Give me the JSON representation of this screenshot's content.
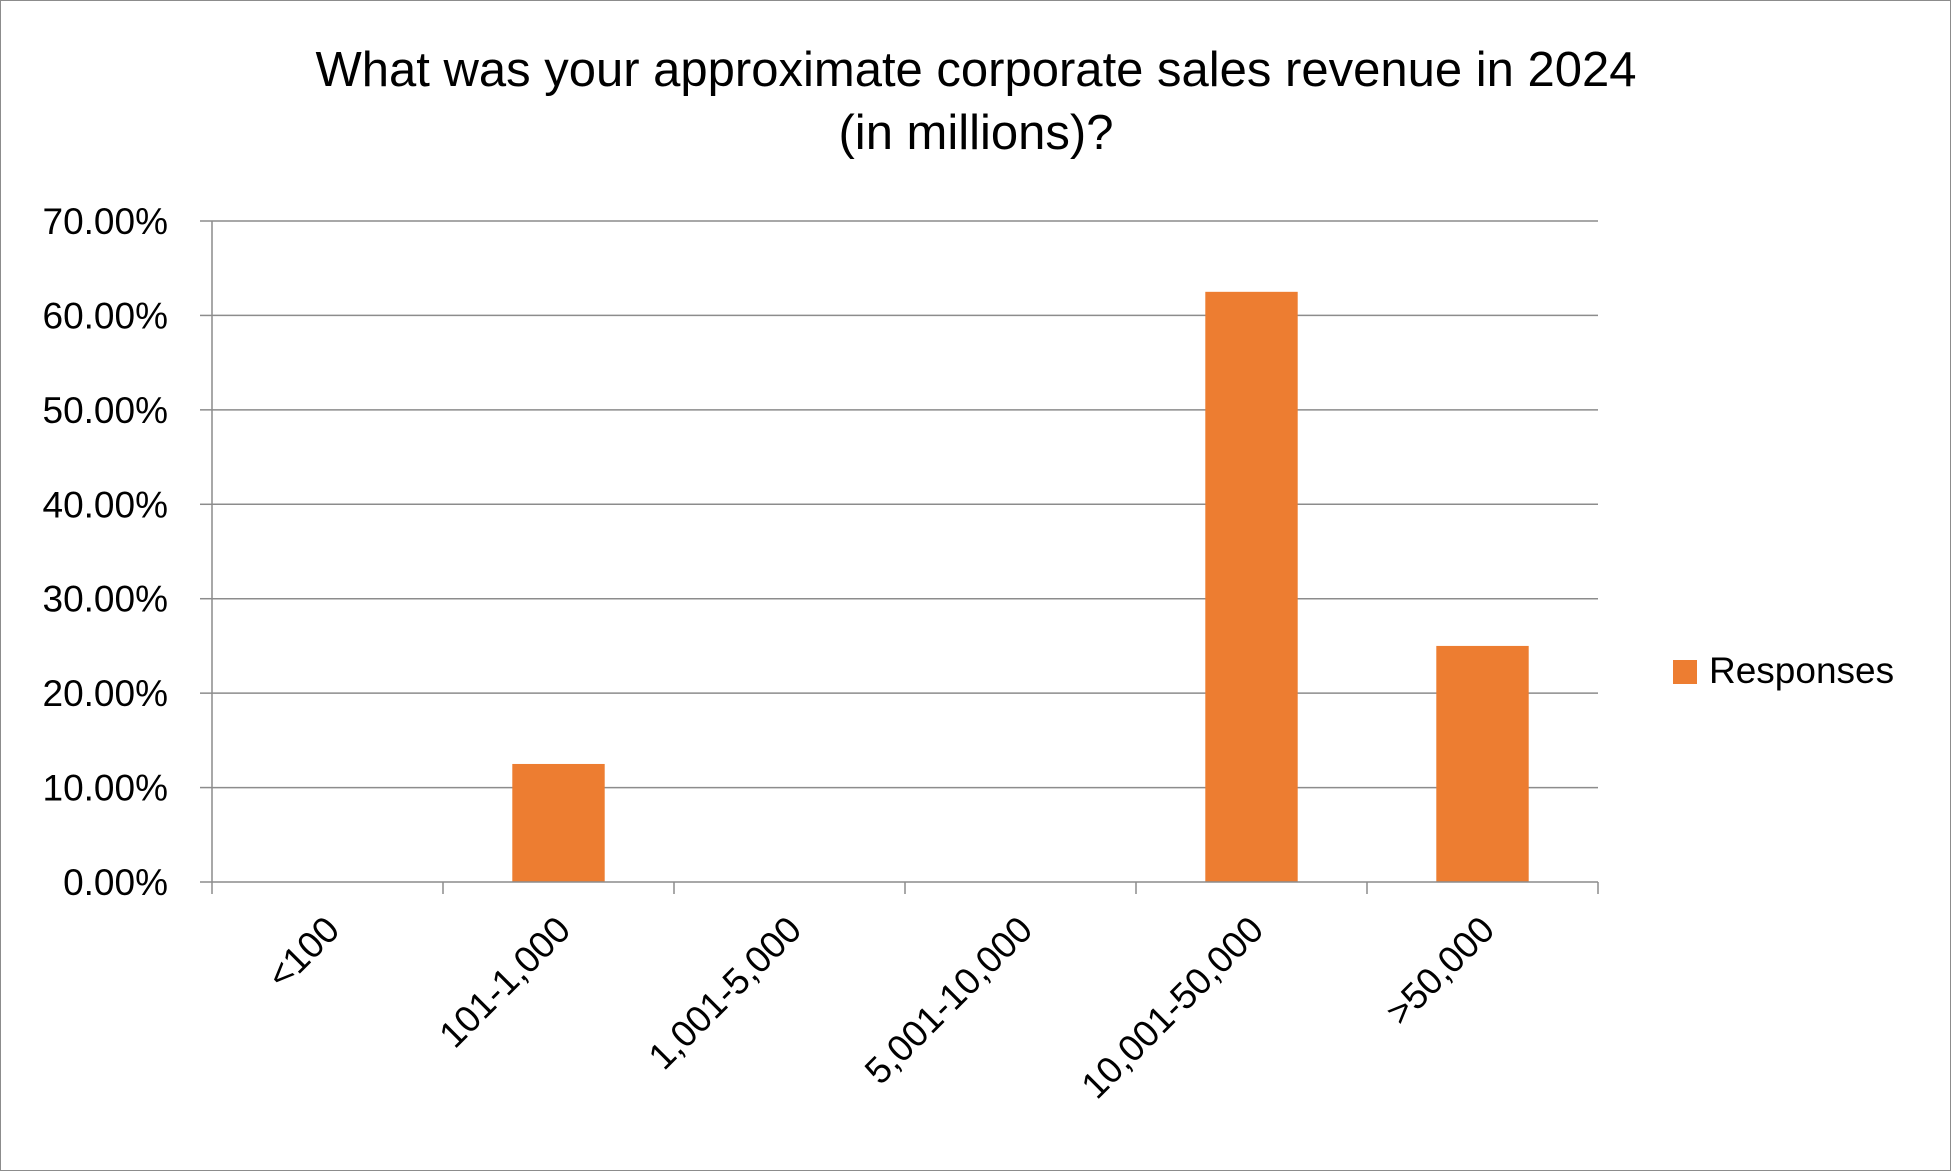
{
  "chart_data": {
    "type": "bar",
    "title_lines": [
      "What was your approximate corporate sales revenue in 2024",
      "(in millions)?"
    ],
    "categories": [
      "<100",
      "101-1,000",
      "1,001-5,000",
      "5,001-10,000",
      "10,001-50,000",
      ">50,000"
    ],
    "series": [
      {
        "name": "Responses",
        "values": [
          0.0,
          12.5,
          0.0,
          0.0,
          62.5,
          25.0
        ]
      }
    ],
    "value_unit": "percent",
    "ylim": [
      0,
      70
    ],
    "yticks": [
      0,
      10,
      20,
      30,
      40,
      50,
      60,
      70
    ],
    "ytick_labels": [
      "0.00%",
      "10.00%",
      "20.00%",
      "30.00%",
      "40.00%",
      "50.00%",
      "60.00%",
      "70.00%"
    ],
    "grid": true,
    "legend_position": "right",
    "bar_color": "#ED7D31"
  }
}
